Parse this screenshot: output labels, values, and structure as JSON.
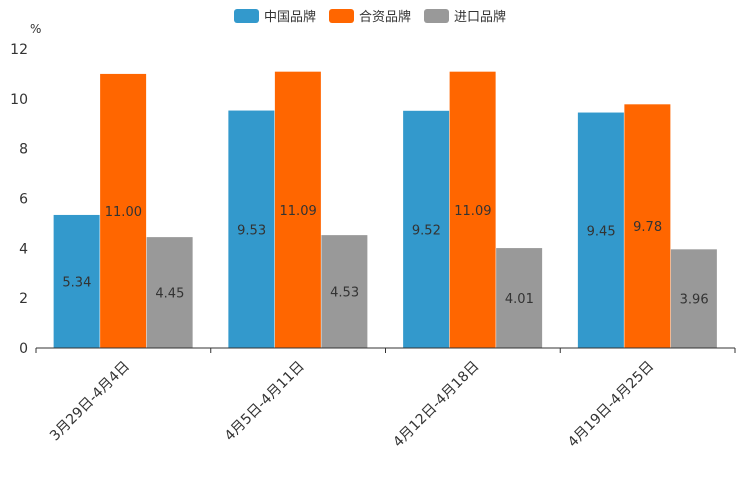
{
  "chart_data": {
    "type": "bar",
    "title": "",
    "xlabel": "",
    "ylabel": "%",
    "ylim": [
      0,
      12
    ],
    "yticks": [
      0,
      2,
      4,
      6,
      8,
      10,
      12
    ],
    "grid": false,
    "legend_position": "top-center",
    "categories": [
      "3月29日-4月4日",
      "4月5日-4月11日",
      "4月12日-4月18日",
      "4月19日-4月25日"
    ],
    "series": [
      {
        "name": "中国品牌",
        "color": "#3399cc",
        "values": [
          5.34,
          9.53,
          9.52,
          9.45
        ],
        "labels": [
          "5.34",
          "9.53",
          "9.52",
          "9.45"
        ]
      },
      {
        "name": "合资品牌",
        "color": "#ff6600",
        "values": [
          11.0,
          11.09,
          11.09,
          9.78
        ],
        "labels": [
          "11.00",
          "11.09",
          "11.09",
          "9.78"
        ]
      },
      {
        "name": "进口品牌",
        "color": "#999999",
        "values": [
          4.45,
          4.53,
          4.01,
          3.96
        ],
        "labels": [
          "4.45",
          "4.53",
          "4.01",
          "3.96"
        ]
      }
    ]
  }
}
